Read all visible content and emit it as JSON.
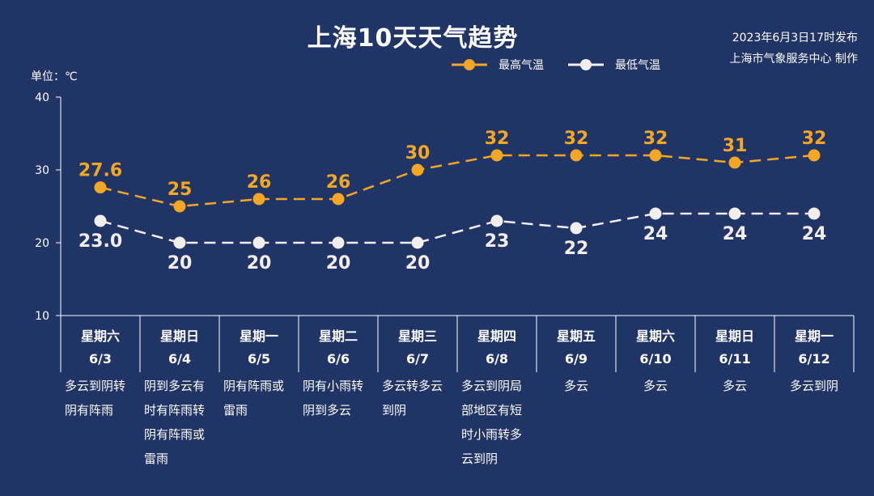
{
  "header": {
    "title": "上海10天天气趋势",
    "issue_time": "2023年6月3日17时发布",
    "issuer": "上海市气象服务中心 制作"
  },
  "colors": {
    "background": "#213466",
    "high": "#F5A623",
    "low": "#F2EEEE",
    "axis": "#FFFFFF"
  },
  "chart_data": {
    "type": "line",
    "ylabel": "单位：℃",
    "ylim": [
      10,
      40
    ],
    "yticks": [
      "10",
      "20",
      "30",
      "40"
    ],
    "categories": [
      {
        "weekday": "星期六",
        "date": "6/3"
      },
      {
        "weekday": "星期日",
        "date": "6/4"
      },
      {
        "weekday": "星期一",
        "date": "6/5"
      },
      {
        "weekday": "星期二",
        "date": "6/6"
      },
      {
        "weekday": "星期三",
        "date": "6/7"
      },
      {
        "weekday": "星期四",
        "date": "6/8"
      },
      {
        "weekday": "星期五",
        "date": "6/9"
      },
      {
        "weekday": "星期六",
        "date": "6/10"
      },
      {
        "weekday": "星期日",
        "date": "6/11"
      },
      {
        "weekday": "星期一",
        "date": "6/12"
      }
    ],
    "series": [
      {
        "name": "最高气温",
        "values": [
          27.6,
          25,
          26,
          26,
          30,
          32,
          32,
          32,
          31,
          32
        ],
        "labels": [
          "27.6",
          "25",
          "26",
          "26",
          "30",
          "32",
          "32",
          "32",
          "31",
          "32"
        ]
      },
      {
        "name": "最低气温",
        "values": [
          23.0,
          20,
          20,
          20,
          20,
          23,
          22,
          24,
          24,
          24
        ],
        "labels": [
          "23.0",
          "20",
          "20",
          "20",
          "20",
          "23",
          "22",
          "24",
          "24",
          "24"
        ]
      }
    ],
    "weather": [
      "多云到阴转阴有阵雨",
      "阴到多云有时有阵雨转阴有阵雨或雷雨",
      "阴有阵雨或雷雨",
      "阴有小雨转阴到多云",
      "多云转多云到阴",
      "多云到阴局部地区有短时小雨转多云到阴",
      "多云",
      "多云",
      "多云",
      "多云到阴"
    ]
  }
}
